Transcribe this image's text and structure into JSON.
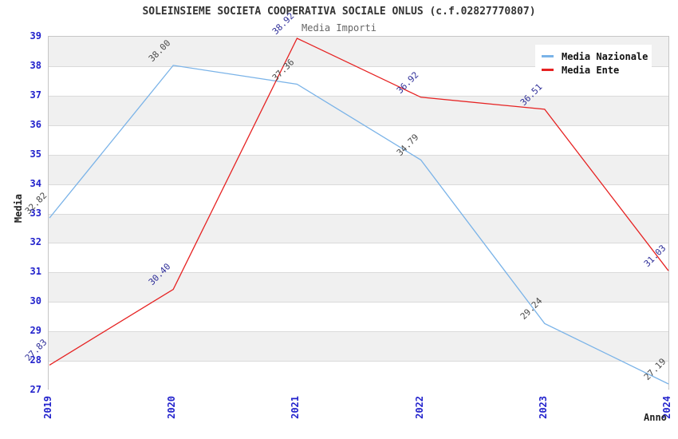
{
  "header": {
    "title": "SOLEINSIEME SOCIETA COOPERATIVA SOCIALE ONLUS (c.f.02827770807)",
    "subtitle": "Media Importi"
  },
  "chart_data": {
    "type": "line",
    "title": "SOLEINSIEME SOCIETA COOPERATIVA SOCIALE ONLUS (c.f.02827770807)",
    "subtitle": "Media Importi",
    "xlabel": "Anno",
    "ylabel": "Media",
    "categories": [
      "2019",
      "2020",
      "2021",
      "2022",
      "2023",
      "2024"
    ],
    "series": [
      {
        "name": "Media Nazionale",
        "color": "#7ab3e8",
        "label_color": "#4a4a4a",
        "values": [
          32.82,
          38.0,
          37.36,
          34.79,
          29.24,
          27.19
        ],
        "labels": [
          "32.82",
          "38.00",
          "37.36",
          "34.79",
          "29.24",
          "27.19"
        ]
      },
      {
        "name": "Media Ente",
        "color": "#e62222",
        "label_color": "#2f2f99",
        "values": [
          27.83,
          30.4,
          38.92,
          36.92,
          36.51,
          31.03
        ],
        "labels": [
          "27.83",
          "30.40",
          "38.92",
          "36.92",
          "36.51",
          "31.03"
        ]
      }
    ],
    "ylim": [
      27,
      39
    ],
    "yticks": [
      39,
      38,
      37,
      36,
      35,
      34,
      33,
      32,
      31,
      30,
      29,
      28,
      27
    ],
    "ytick_step": 1,
    "grid": "horizontal-bands-alternating",
    "legend_position": "top-right",
    "colors": {
      "tick_label": "#2222cc",
      "band_gray": "#f0f0f0",
      "gridline": "#dadada",
      "plot_border": "#c6c6c6",
      "title": "#333333",
      "subtitle": "#666666"
    }
  },
  "legend": {
    "items": [
      {
        "label": "Media Nazionale",
        "color": "#7ab3e8"
      },
      {
        "label": "Media Ente",
        "color": "#e62222"
      }
    ]
  }
}
